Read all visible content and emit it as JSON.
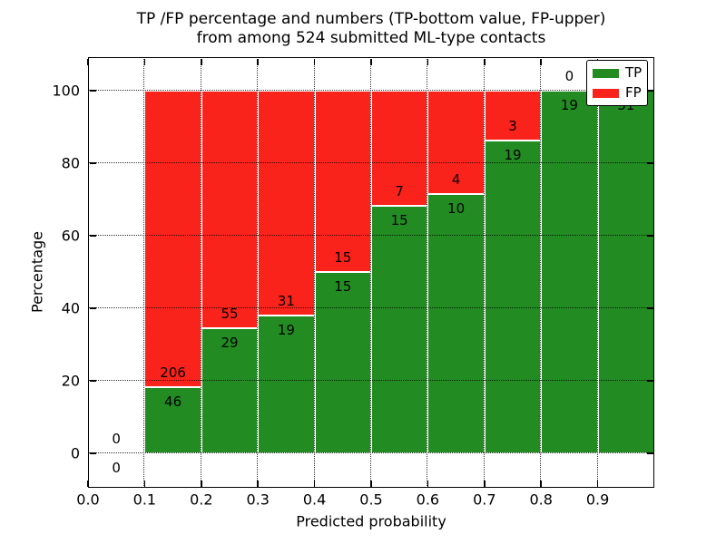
{
  "chart_data": {
    "type": "bar",
    "stacked": true,
    "title_line1": "TP /FP percentage and numbers (TP-bottom value, FP-upper)",
    "title_line2": "from among 524 submitted ML-type contacts",
    "xlabel": "Predicted probability",
    "ylabel": "Percentage",
    "total_submitted": 524,
    "x_ticks": [
      "0.0",
      "0.1",
      "0.2",
      "0.3",
      "0.4",
      "0.5",
      "0.6",
      "0.7",
      "0.8",
      "0.9"
    ],
    "y_ticks": [
      "0",
      "20",
      "40",
      "60",
      "80",
      "100"
    ],
    "xlim": [
      0.0,
      1.0
    ],
    "ylim": [
      0,
      100
    ],
    "grid": true,
    "legend": {
      "position": "upper right",
      "entries": [
        {
          "label": "TP",
          "color": "#228b22"
        },
        {
          "label": "FP",
          "color": "#fa231b"
        }
      ]
    },
    "bins": [
      {
        "x_start": 0.0,
        "x_end": 0.1,
        "tp": 0,
        "fp": 0,
        "tp_pct": 0
      },
      {
        "x_start": 0.1,
        "x_end": 0.2,
        "tp": 46,
        "fp": 206,
        "tp_pct": 18.3
      },
      {
        "x_start": 0.2,
        "x_end": 0.3,
        "tp": 29,
        "fp": 55,
        "tp_pct": 34.5
      },
      {
        "x_start": 0.3,
        "x_end": 0.4,
        "tp": 19,
        "fp": 31,
        "tp_pct": 38.0
      },
      {
        "x_start": 0.4,
        "x_end": 0.5,
        "tp": 15,
        "fp": 15,
        "tp_pct": 50.0
      },
      {
        "x_start": 0.5,
        "x_end": 0.6,
        "tp": 15,
        "fp": 7,
        "tp_pct": 68.2
      },
      {
        "x_start": 0.6,
        "x_end": 0.7,
        "tp": 10,
        "fp": 4,
        "tp_pct": 71.4
      },
      {
        "x_start": 0.7,
        "x_end": 0.8,
        "tp": 19,
        "fp": 3,
        "tp_pct": 86.4
      },
      {
        "x_start": 0.8,
        "x_end": 0.9,
        "tp": 19,
        "fp": 0,
        "tp_pct": 100.0
      },
      {
        "x_start": 0.9,
        "x_end": 1.0,
        "tp": 31,
        "fp": 0,
        "tp_pct": 100.0
      }
    ]
  },
  "colors": {
    "tp": "#228b22",
    "fp": "#fa231b",
    "text": "#000000",
    "grid": "#000000",
    "background": "#ffffff"
  }
}
